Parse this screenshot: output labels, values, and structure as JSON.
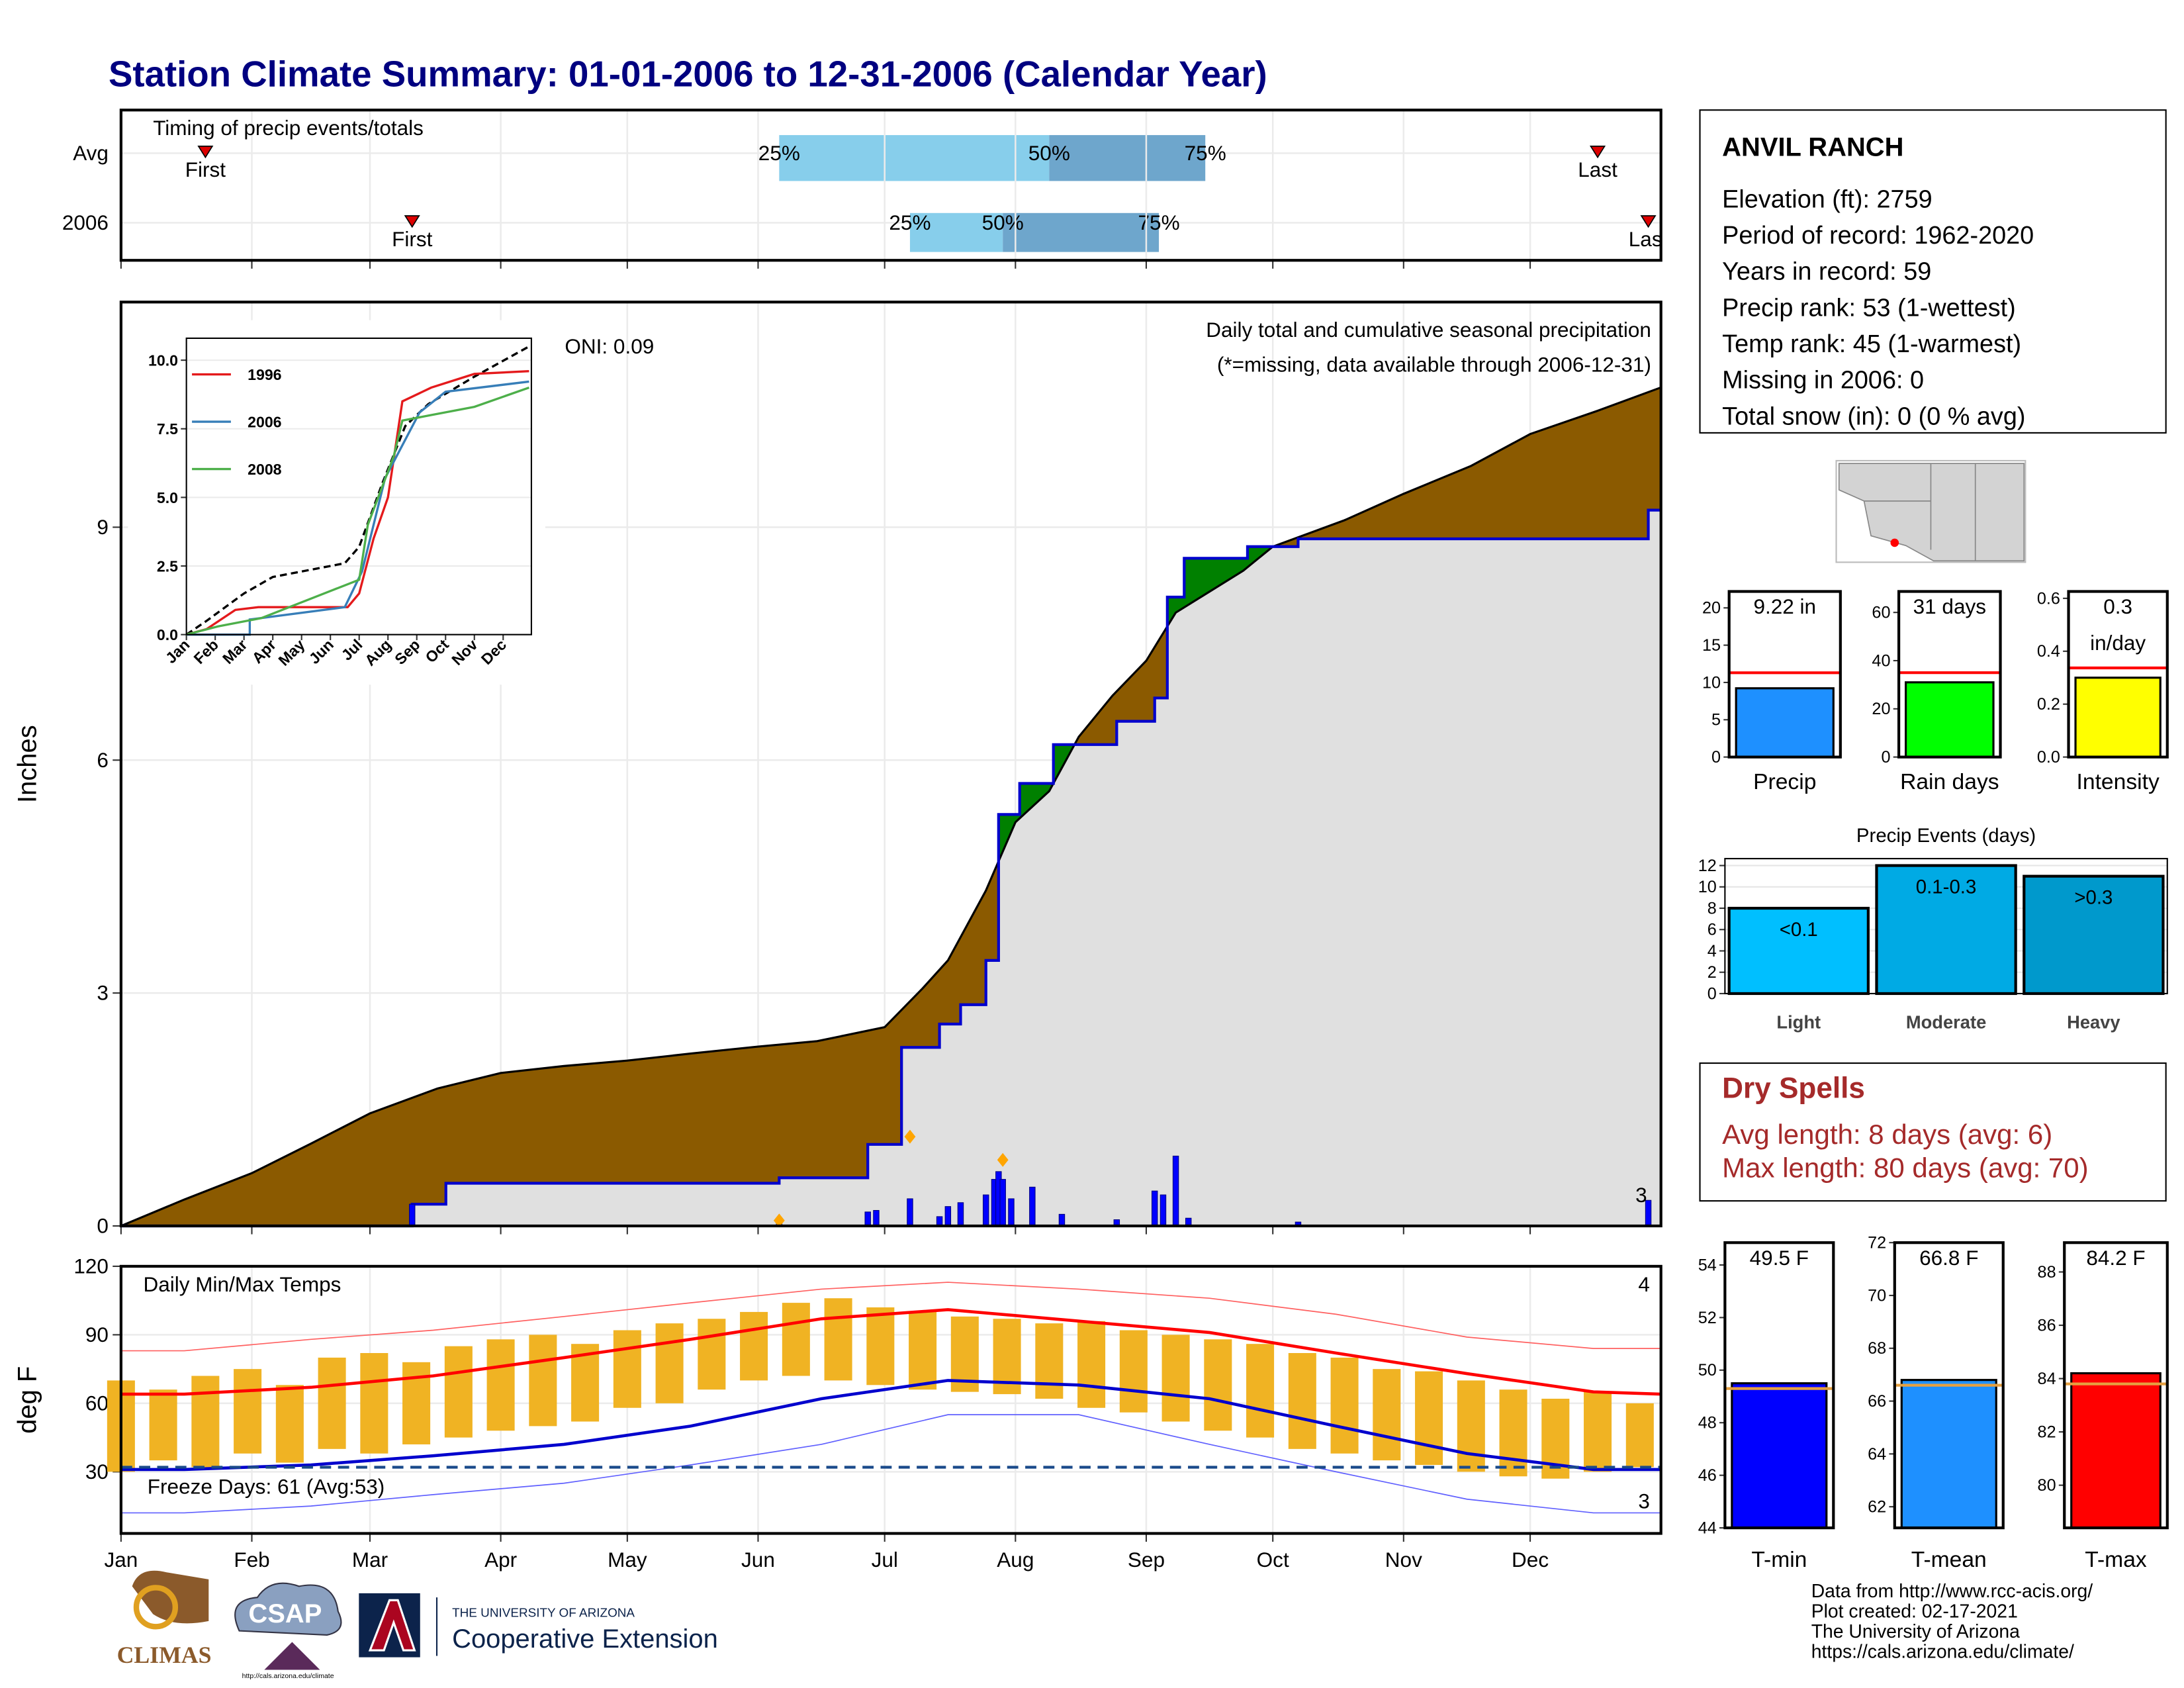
{
  "title": "Station Climate Summary: 01-01-2006 to 12-31-2006 (Calendar Year)",
  "chart_data": [
    {
      "type": "timing",
      "title": "Timing of precip events/totals",
      "xlim": [
        0,
        365
      ],
      "marker_labels": {
        "first": "First",
        "p25": "25%",
        "p50": "50%",
        "p75": "75%",
        "last": "Last"
      },
      "rows": [
        {
          "label": "Avg",
          "first": 20,
          "p25": 156,
          "p50": 220,
          "p75": 257,
          "last": 350
        },
        {
          "label": "2006",
          "first": 69,
          "p25": 187,
          "p50": 209,
          "p75": 246,
          "last": 362
        }
      ]
    },
    {
      "type": "area",
      "ylabel": "Inches",
      "xlim": [
        0,
        365
      ],
      "ylim": [
        0,
        11.9
      ],
      "yticks": [
        0,
        3,
        6,
        9
      ],
      "grid": true,
      "annotations": [
        "Daily total and cumulative seasonal precipitation",
        "(*=missing, data available through 2006-12-31)",
        "ONI: 0.09",
        "3"
      ],
      "avg": {
        "x": [
          0,
          15,
          31,
          45,
          59,
          75,
          90,
          105,
          120,
          135,
          151,
          165,
          181,
          190,
          196,
          205,
          212,
          220,
          227,
          235,
          243,
          250,
          258,
          266,
          273,
          290,
          304,
          320,
          334,
          350,
          365
        ],
        "values": [
          0,
          0.34,
          0.68,
          1.06,
          1.45,
          1.77,
          1.97,
          2.06,
          2.13,
          2.22,
          2.31,
          2.38,
          2.56,
          3.06,
          3.42,
          4.32,
          5.2,
          5.6,
          6.3,
          6.83,
          7.28,
          7.9,
          8.17,
          8.44,
          8.75,
          9.09,
          9.43,
          9.79,
          10.2,
          10.5,
          10.8
        ],
        "color": "#8b5a00"
      },
      "year": {
        "x": [
          0,
          69,
          69,
          77,
          77,
          156,
          156,
          177,
          177,
          185,
          185,
          194,
          194,
          199,
          199,
          205,
          205,
          208,
          208,
          213,
          213,
          221,
          221,
          236,
          236,
          245,
          245,
          248,
          248,
          252,
          252,
          267,
          267,
          279,
          279,
          362,
          362,
          365
        ],
        "values": [
          0,
          0,
          0.28,
          0.28,
          0.55,
          0.55,
          0.62,
          0.62,
          1.05,
          1.05,
          2.3,
          2.3,
          2.6,
          2.6,
          2.85,
          2.85,
          3.42,
          3.42,
          5.3,
          5.3,
          5.7,
          5.7,
          6.2,
          6.2,
          6.5,
          6.5,
          6.8,
          6.8,
          8.1,
          8.1,
          8.6,
          8.6,
          8.75,
          8.75,
          8.85,
          8.85,
          9.22,
          9.22
        ],
        "color": "#0000cd",
        "above_color": "#008000",
        "below_color": "#e0e0e0"
      },
      "daily": {
        "x": [
          69,
          156,
          177,
          179,
          187,
          194,
          196,
          199,
          205,
          207,
          208,
          209,
          211,
          216,
          223,
          236,
          245,
          247,
          250,
          253,
          279,
          362
        ],
        "values": [
          0.28,
          0.07,
          0.18,
          0.2,
          0.35,
          0.12,
          0.25,
          0.3,
          0.4,
          0.6,
          0.7,
          0.6,
          0.35,
          0.5,
          0.15,
          0.08,
          0.45,
          0.4,
          0.9,
          0.1,
          0.05,
          0.33
        ],
        "color": "#0000ff"
      },
      "markers": {
        "x": [
          156,
          187,
          209
        ],
        "values": [
          0.07,
          1.15,
          0.85
        ],
        "color": "#ffa500"
      }
    },
    {
      "type": "line",
      "xlim": [
        0,
        12
      ],
      "ylim": [
        0,
        10.8
      ],
      "categories": [
        "Jan",
        "Feb",
        "Mar",
        "Apr",
        "May",
        "Jun",
        "Jul",
        "Aug",
        "Sep",
        "Oct",
        "Nov",
        "Dec"
      ],
      "yticks": [
        {
          "value": 0,
          "label": "0.0"
        },
        {
          "value": 2.5,
          "label": "2.5"
        },
        {
          "value": 5,
          "label": "5.0"
        },
        {
          "value": 7.5,
          "label": "7.5"
        },
        {
          "value": 10,
          "label": "10.0"
        }
      ],
      "avg": {
        "x": [
          0,
          0.7,
          2,
          3,
          4.5,
          5.5,
          6,
          6.8,
          7.6,
          8.4,
          10,
          11.9
        ],
        "values": [
          0,
          0.5,
          1.5,
          2.1,
          2.4,
          2.6,
          3.2,
          5.5,
          7.6,
          8.4,
          9.4,
          10.5
        ],
        "color": "#000000"
      },
      "series": [
        {
          "name": "1996",
          "color": "#e41a1c",
          "x": [
            0,
            0.7,
            1.7,
            2.5,
            5.6,
            6,
            6.5,
            7,
            7.5,
            8.5,
            10,
            11.9
          ],
          "values": [
            0,
            0.2,
            0.9,
            1,
            1,
            1.5,
            3.5,
            5,
            8.5,
            9,
            9.5,
            9.6
          ]
        },
        {
          "name": "2006",
          "color": "#377eb8",
          "x": [
            0,
            2.2,
            2.2,
            5.5,
            6.1,
            6.9,
            8.1,
            9,
            11.9
          ],
          "values": [
            0,
            0,
            0.55,
            1,
            2.3,
            5.7,
            8.1,
            8.85,
            9.22
          ]
        },
        {
          "name": "2008",
          "color": "#4daf4a",
          "x": [
            0,
            1.1,
            2.6,
            6,
            6.3,
            7.2,
            7.5,
            8.5,
            10,
            11.9
          ],
          "values": [
            0,
            0.3,
            0.6,
            2,
            4,
            6.5,
            7.8,
            8,
            8.3,
            9
          ]
        }
      ]
    },
    {
      "type": "range-bar",
      "title": "Daily Min/Max Temps",
      "ylabel": "deg F",
      "xlim": [
        0,
        365
      ],
      "ylim": [
        3,
        120
      ],
      "yticks": [
        30,
        60,
        90,
        120
      ],
      "xticks": [
        {
          "value": 0,
          "label": "Jan"
        },
        {
          "value": 31,
          "label": "Feb"
        },
        {
          "value": 59,
          "label": "Mar"
        },
        {
          "value": 90,
          "label": "Apr"
        },
        {
          "value": 120,
          "label": "May"
        },
        {
          "value": 151,
          "label": "Jun"
        },
        {
          "value": 181,
          "label": "Jul"
        },
        {
          "value": 212,
          "label": "Aug"
        },
        {
          "value": 243,
          "label": "Sep"
        },
        {
          "value": 273,
          "label": "Oct"
        },
        {
          "value": 304,
          "label": "Nov"
        },
        {
          "value": 334,
          "label": "Dec"
        }
      ],
      "x": [
        0,
        10,
        20,
        30,
        40,
        50,
        60,
        70,
        80,
        90,
        100,
        110,
        120,
        130,
        140,
        150,
        160,
        170,
        180,
        190,
        200,
        210,
        220,
        230,
        240,
        250,
        260,
        270,
        280,
        290,
        300,
        310,
        320,
        330,
        340,
        350,
        360
      ],
      "high": [
        70,
        66,
        72,
        75,
        68,
        80,
        82,
        78,
        85,
        88,
        90,
        86,
        92,
        95,
        97,
        100,
        104,
        106,
        102,
        100,
        98,
        97,
        95,
        96,
        92,
        90,
        88,
        86,
        82,
        80,
        75,
        74,
        70,
        66,
        62,
        65,
        60
      ],
      "low": [
        30,
        35,
        32,
        38,
        34,
        40,
        38,
        42,
        45,
        48,
        50,
        52,
        58,
        60,
        66,
        70,
        72,
        70,
        68,
        66,
        65,
        64,
        62,
        58,
        56,
        52,
        48,
        45,
        40,
        38,
        35,
        33,
        30,
        28,
        27,
        30,
        32
      ],
      "bar_color": "#f0b323",
      "normal_x": [
        0,
        15,
        45,
        74,
        105,
        135,
        166,
        196,
        227,
        258,
        288,
        319,
        349,
        365
      ],
      "normal_high": [
        64,
        64,
        67,
        72,
        80,
        88,
        97,
        101,
        96,
        91,
        82,
        73,
        65,
        64
      ],
      "normal_low": [
        31,
        31,
        33,
        37,
        42,
        50,
        62,
        70,
        68,
        62,
        50,
        38,
        31,
        31
      ],
      "record_high": [
        83,
        83,
        88,
        92,
        98,
        104,
        110,
        113,
        110,
        106,
        99,
        89,
        84,
        84
      ],
      "record_low": [
        12,
        12,
        15,
        20,
        25,
        33,
        42,
        55,
        55,
        42,
        30,
        18,
        12,
        12
      ],
      "freeze": 32,
      "freeze_label": "Freeze Days: 61 (Avg:53)",
      "high_count": "4",
      "low_count": "3"
    },
    {
      "type": "bar",
      "categories": [
        "Precip"
      ],
      "values": [
        9.22
      ],
      "value_labels": [
        "9.22 in"
      ],
      "color": "#1e90ff",
      "reference": 11.3,
      "reference_color": "#ff0000",
      "ylim": [
        0,
        22.2
      ],
      "yticks": [
        0,
        5,
        10,
        15,
        20
      ]
    },
    {
      "type": "bar",
      "categories": [
        "Rain days"
      ],
      "values": [
        31
      ],
      "value_labels": [
        "31 days"
      ],
      "color": "#00ff00",
      "reference": 35,
      "reference_color": "#ff0000",
      "ylim": [
        0,
        68.7
      ],
      "yticks": [
        0,
        20,
        40,
        60
      ]
    },
    {
      "type": "bar",
      "categories": [
        "Intensity"
      ],
      "values": [
        0.3
      ],
      "value_labels": [
        "0.3 in/day"
      ],
      "label_lines": 2,
      "color": "#ffff00",
      "reference": 0.337,
      "reference_color": "#ff0000",
      "ylim": [
        0,
        0.626
      ],
      "yticks": [
        {
          "value": 0,
          "label": "0.0"
        },
        {
          "value": 0.2,
          "label": "0.2"
        },
        {
          "value": 0.4,
          "label": "0.4"
        },
        {
          "value": 0.6,
          "label": "0.6"
        }
      ]
    },
    {
      "type": "bar",
      "title": "Precip Events (days)",
      "categories": [
        "Light",
        "Moderate",
        "Heavy"
      ],
      "values": [
        8,
        12,
        11
      ],
      "value_labels": [
        "<0.1",
        "0.1-0.3",
        ">0.3"
      ],
      "colors": [
        "#00bfff",
        "#00aae4",
        "#0099cc"
      ],
      "ylim": [
        0,
        12.65
      ],
      "yticks": [
        0,
        2,
        4,
        6,
        8,
        10,
        12
      ],
      "grid": true
    },
    {
      "type": "bar",
      "categories": [
        "T-min"
      ],
      "values": [
        49.5
      ],
      "value_labels": [
        "49.5 F"
      ],
      "color": "#0000ff",
      "reference": 49.3,
      "reference_color": "#e6a040",
      "ylim": [
        44,
        54.85
      ],
      "yticks": [
        44,
        46,
        48,
        50,
        52,
        54
      ]
    },
    {
      "type": "bar",
      "categories": [
        "T-mean"
      ],
      "values": [
        66.8
      ],
      "value_labels": [
        "66.8 F"
      ],
      "color": "#1e90ff",
      "reference": 66.6,
      "reference_color": "#e6a040",
      "ylim": [
        61.2,
        72
      ],
      "yticks": [
        62,
        64,
        66,
        68,
        70,
        72
      ]
    },
    {
      "type": "bar",
      "categories": [
        "T-max"
      ],
      "values": [
        84.2
      ],
      "value_labels": [
        "84.2 F"
      ],
      "color": "#ff0000",
      "reference": 83.8,
      "reference_color": "#e6a040",
      "ylim": [
        78.4,
        89.1
      ],
      "yticks": [
        80,
        82,
        84,
        86,
        88
      ]
    }
  ],
  "station": {
    "name": "ANVIL RANCH",
    "lines": [
      "Elevation (ft): 2759",
      "Period of record: 1962-2020",
      "Years in record: 59",
      "Precip rank: 53 (1-wettest)",
      "Temp rank: 45 (1-warmest)",
      "Missing in 2006: 0",
      "Total snow (in): 0 (0 % avg)"
    ]
  },
  "dry_spells": {
    "title": "Dry Spells",
    "lines": [
      "Avg length: 8 days (avg: 6)",
      "Max length: 80 days (avg: 70)"
    ]
  },
  "footer": [
    "Data from http://www.rcc-acis.org/",
    "Plot created: 02-17-2021",
    "The University of Arizona",
    "https://cals.arizona.edu/climate/"
  ],
  "logos": {
    "climas": "CLIMAS",
    "csap": "CSAP",
    "csap_url": "http://cals.arizona.edu/climate",
    "ua": "THE UNIVERSITY OF ARIZONA",
    "coop": "Cooperative Extension"
  }
}
